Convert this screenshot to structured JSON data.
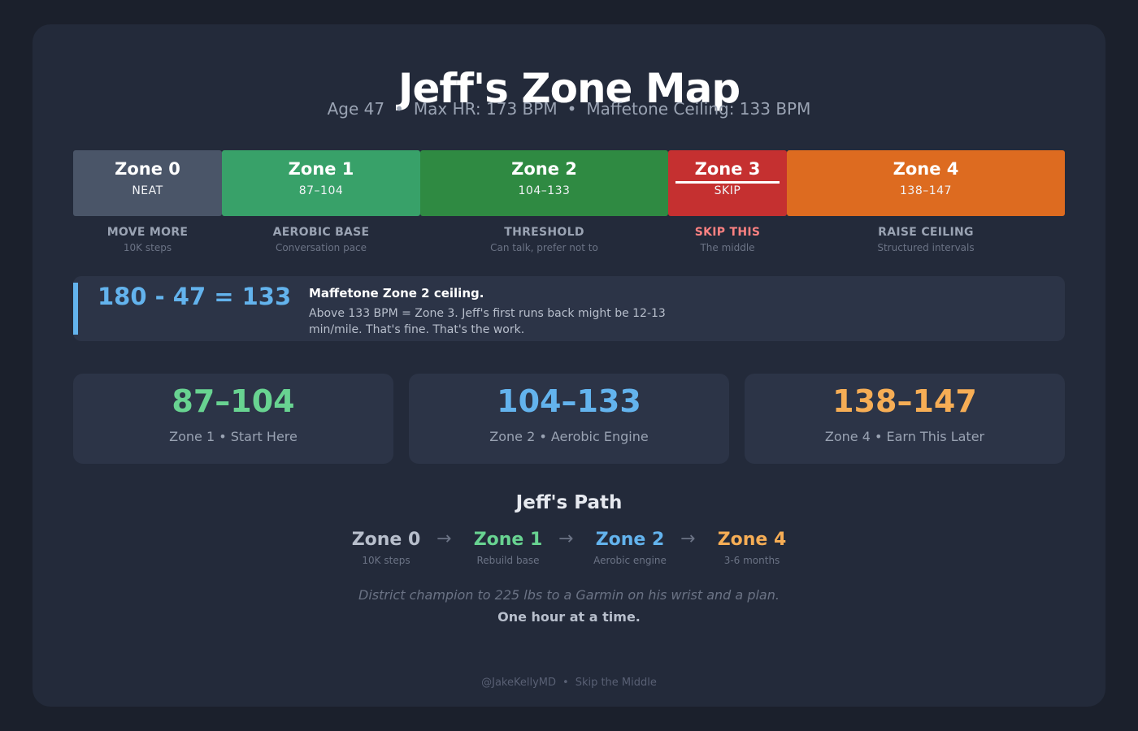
{
  "header": {
    "title": "Jeff's Zone Map",
    "age": "Age 47",
    "max_hr": "Max HR: 173 BPM",
    "ceiling": "Maffetone Ceiling: 133 BPM",
    "separator": "•"
  },
  "zones": [
    {
      "name": "Zone 0",
      "range": "NEAT",
      "label": "MOVE MORE",
      "sub": "10K steps",
      "color": "#4a5568"
    },
    {
      "name": "Zone 1",
      "range": "87–104",
      "label": "AEROBIC BASE",
      "sub": "Conversation pace",
      "color": "#38a169"
    },
    {
      "name": "Zone 2",
      "range": "104–133",
      "label": "THRESHOLD",
      "sub": "Can talk, prefer not to",
      "color": "#2f8a42"
    },
    {
      "name": "Zone 3",
      "range": "SKIP",
      "label": "SKIP THIS",
      "sub": "The middle",
      "color": "#c53030"
    },
    {
      "name": "Zone 4",
      "range": "138–147",
      "label": "RAISE CEILING",
      "sub": "Structured intervals",
      "color": "#dd6b20"
    }
  ],
  "formula": {
    "equation": "180 - 47 = 133",
    "heading": "Maffetone Zone 2 ceiling.",
    "body": "Above 133 BPM = Zone 3. Jeff's first runs back might be 12-13 min/mile. That's fine. That's the work."
  },
  "stats": [
    {
      "value": "87–104",
      "label": "Zone 1 • Start Here",
      "color": "#68d391"
    },
    {
      "value": "104–133",
      "label": "Zone 2 • Aerobic Engine",
      "color": "#63b3ed"
    },
    {
      "value": "138–147",
      "label": "Zone 4 • Earn This Later",
      "color": "#f6ad55"
    }
  ],
  "path": {
    "title": "Jeff's Path",
    "arrow": "→",
    "steps": [
      {
        "name": "Zone 0",
        "caption": "10K steps",
        "color": "#b8bfcc"
      },
      {
        "name": "Zone 1",
        "caption": "Rebuild base",
        "color": "#68d391"
      },
      {
        "name": "Zone 2",
        "caption": "Aerobic engine",
        "color": "#63b3ed"
      },
      {
        "name": "Zone 4",
        "caption": "3-6 months",
        "color": "#f6ad55"
      }
    ]
  },
  "quote": "District champion to 225 lbs to a Garmin on his wrist and a plan.",
  "closing": "One hour at a time.",
  "footer": {
    "handle": "@JakeKellyMD",
    "tagline": "Skip the Middle",
    "separator": "•"
  }
}
